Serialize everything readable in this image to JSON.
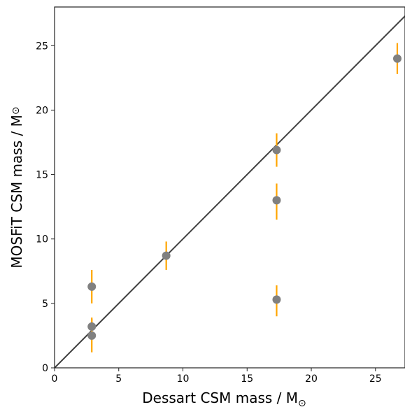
{
  "chart_data": {
    "type": "scatter",
    "title": "",
    "xlabel": "Dessart CSM mass / M",
    "ylabel": "MOSFiT CSM mass / M",
    "xlabel_sub": "⊙",
    "ylabel_sub": "⊙",
    "xlim": [
      0,
      27.3
    ],
    "ylim": [
      0,
      28
    ],
    "xticks": [
      0,
      5,
      10,
      15,
      20,
      25
    ],
    "yticks": [
      0,
      5,
      10,
      15,
      20,
      25
    ],
    "grid": false,
    "reference_line": {
      "x": [
        0,
        27.3
      ],
      "y": [
        0,
        27.3
      ],
      "color": "#404040"
    },
    "colors": {
      "marker": "#808080",
      "errorbar": "#ffa500"
    },
    "points": [
      {
        "x": 2.9,
        "y": 6.3,
        "yerr": [
          1.3,
          1.3
        ]
      },
      {
        "x": 2.9,
        "y": 3.2,
        "yerr": [
          0.7,
          0.7
        ]
      },
      {
        "x": 2.9,
        "y": 2.5,
        "yerr": [
          1.3,
          1.3
        ]
      },
      {
        "x": 8.7,
        "y": 8.7,
        "yerr": [
          1.1,
          1.1
        ]
      },
      {
        "x": 17.3,
        "y": 16.9,
        "yerr": [
          1.3,
          1.3
        ]
      },
      {
        "x": 17.3,
        "y": 13.0,
        "yerr": [
          1.5,
          1.3
        ]
      },
      {
        "x": 17.3,
        "y": 5.3,
        "yerr": [
          1.3,
          1.1
        ]
      },
      {
        "x": 26.7,
        "y": 24.0,
        "yerr": [
          1.2,
          1.2
        ]
      }
    ]
  }
}
